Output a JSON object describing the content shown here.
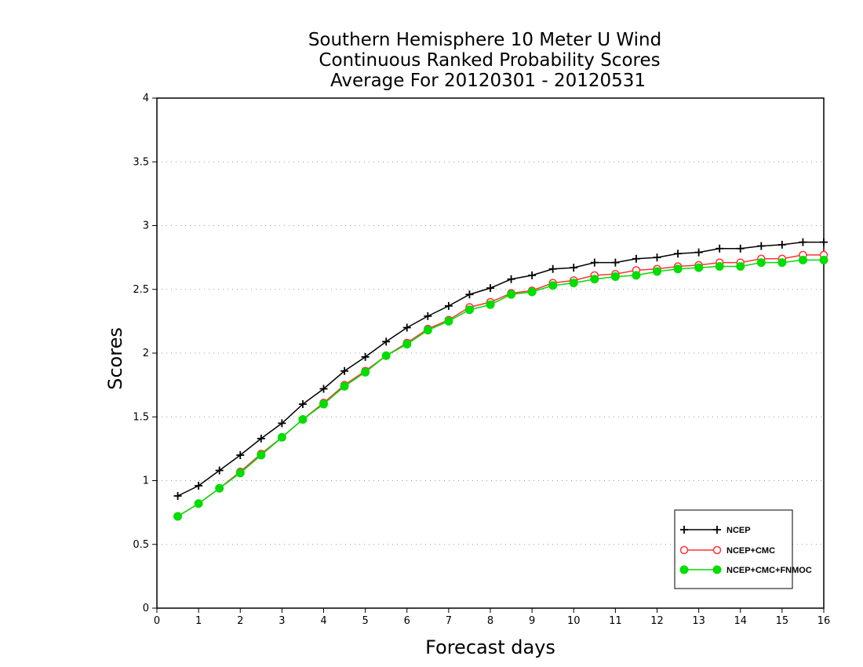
{
  "chart_data": {
    "type": "line",
    "title": [
      "Southern Hemisphere 10 Meter U Wind",
      "Continuous Ranked Probability Scores",
      "Average For 20120301 - 20120531"
    ],
    "xlabel": "Forecast days",
    "ylabel": "Scores",
    "xlim": [
      0,
      16
    ],
    "ylim": [
      0,
      4
    ],
    "xticks": [
      0,
      1,
      2,
      3,
      4,
      5,
      6,
      7,
      8,
      9,
      10,
      11,
      12,
      13,
      14,
      15,
      16
    ],
    "yticks": [
      0,
      0.5,
      1,
      1.5,
      2,
      2.5,
      3,
      3.5,
      4
    ],
    "xtick_labels": [
      "0",
      "1",
      "2",
      "3",
      "4",
      "5",
      "6",
      "7",
      "8",
      "9",
      "10",
      "11",
      "12",
      "13",
      "14",
      "15",
      "16"
    ],
    "ytick_labels": [
      "0",
      "0.5",
      "1",
      "1.5",
      "2",
      "2.5",
      "3",
      "3.5",
      "4"
    ],
    "grid": "horizontal dotted",
    "legend_position": "bottom-right",
    "x": [
      0.5,
      1,
      1.5,
      2,
      2.5,
      3,
      3.5,
      4,
      4.5,
      5,
      5.5,
      6,
      6.5,
      7,
      7.5,
      8,
      8.5,
      9,
      9.5,
      10,
      10.5,
      11,
      11.5,
      12,
      12.5,
      13,
      13.5,
      14,
      14.5,
      15,
      15.5,
      16
    ],
    "series": [
      {
        "name": "NCEP",
        "color": "#000000",
        "marker": "plus",
        "values": [
          0.88,
          0.96,
          1.08,
          1.2,
          1.33,
          1.45,
          1.6,
          1.72,
          1.86,
          1.97,
          2.09,
          2.2,
          2.29,
          2.37,
          2.46,
          2.51,
          2.58,
          2.61,
          2.66,
          2.67,
          2.71,
          2.71,
          2.74,
          2.75,
          2.78,
          2.79,
          2.82,
          2.82,
          2.84,
          2.85,
          2.87,
          2.87
        ]
      },
      {
        "name": "NCEP+CMC",
        "color": "#ff3333",
        "marker": "open-circle",
        "values": [
          0.72,
          0.82,
          0.94,
          1.07,
          1.21,
          1.34,
          1.48,
          1.61,
          1.75,
          1.86,
          1.98,
          2.08,
          2.19,
          2.26,
          2.36,
          2.4,
          2.47,
          2.49,
          2.55,
          2.57,
          2.61,
          2.62,
          2.65,
          2.66,
          2.68,
          2.69,
          2.71,
          2.71,
          2.74,
          2.74,
          2.77,
          2.77
        ]
      },
      {
        "name": "NCEP+CMC+FNMOC",
        "color": "#00dd00",
        "marker": "filled-circle",
        "values": [
          0.72,
          0.82,
          0.94,
          1.06,
          1.2,
          1.34,
          1.48,
          1.6,
          1.74,
          1.85,
          1.98,
          2.07,
          2.18,
          2.25,
          2.34,
          2.38,
          2.46,
          2.48,
          2.53,
          2.55,
          2.58,
          2.6,
          2.61,
          2.64,
          2.66,
          2.67,
          2.68,
          2.68,
          2.71,
          2.71,
          2.73,
          2.73
        ]
      }
    ]
  }
}
